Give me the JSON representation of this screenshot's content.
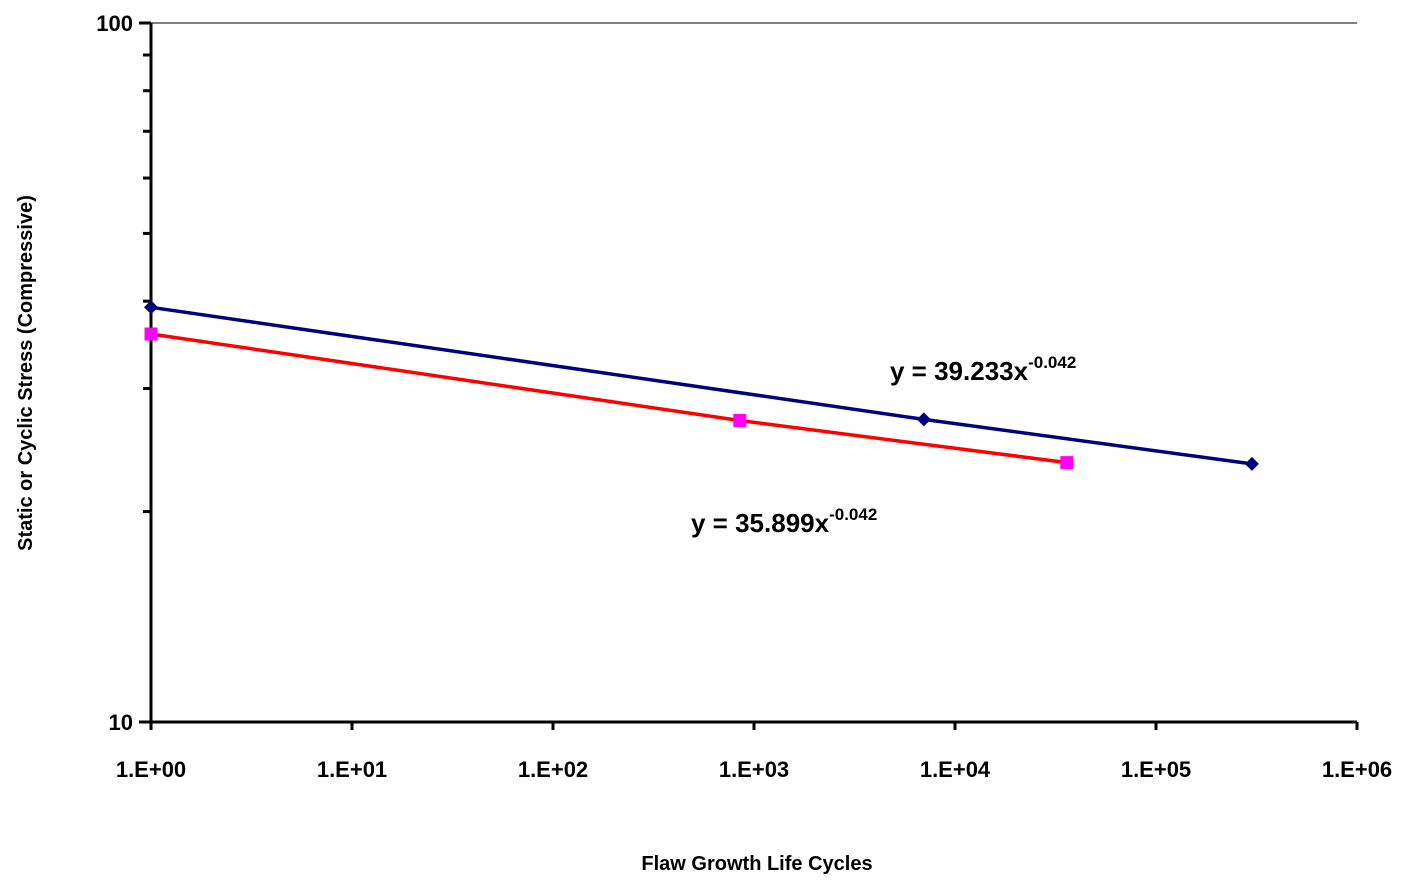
{
  "chart_data": {
    "type": "line",
    "xscale": "log",
    "yscale": "log",
    "xlabel": "Flaw Growth Life Cycles",
    "ylabel": "Static or Cyclic Stress (Compressive)",
    "xlim": [
      1,
      1000000
    ],
    "ylim": [
      10,
      100
    ],
    "x_tick_labels": [
      "1.E+00",
      "1.E+01",
      "1.E+02",
      "1.E+03",
      "1.E+04",
      "1.E+05",
      "1.E+06"
    ],
    "y_tick_labels": [
      "10",
      "100"
    ],
    "grid": "top border line only",
    "series": [
      {
        "color": "#000080",
        "marker": "diamond",
        "marker_color": "#000080",
        "x": [
          1,
          7000,
          300000
        ],
        "y": [
          39.2,
          27.1,
          23.4
        ]
      },
      {
        "color": "#ff0000",
        "marker": "square",
        "marker_color": "#ff00ff",
        "x": [
          1,
          850,
          36000
        ],
        "y": [
          35.9,
          27.0,
          23.5
        ]
      }
    ],
    "annotations": [
      {
        "base": "y = 39.233x",
        "exp": "-0.042",
        "color": "#000000"
      },
      {
        "base": "y = 35.899x",
        "exp": "-0.042",
        "color": "#000000"
      }
    ]
  }
}
